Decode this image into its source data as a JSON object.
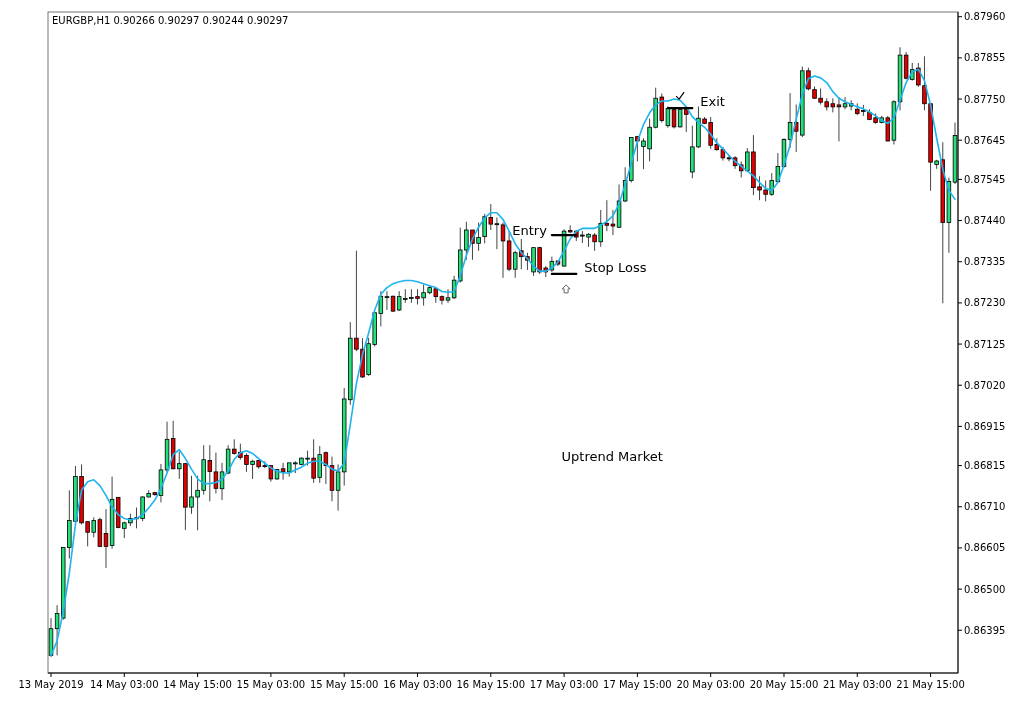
{
  "chart_data": {
    "type": "candlestick",
    "title": "EURGBP,H1 0.90266 0.90297 0.90244 0.90297",
    "categories": [
      "13 May 2019",
      null,
      null,
      null,
      null,
      null,
      null,
      null,
      null,
      null,
      null,
      null,
      "14 May 03:00",
      null,
      null,
      null,
      null,
      null,
      null,
      null,
      null,
      null,
      null,
      null,
      "14 May 15:00",
      null,
      null,
      null,
      null,
      null,
      null,
      null,
      null,
      null,
      null,
      null,
      "15 May 03:00",
      null,
      null,
      null,
      null,
      null,
      null,
      null,
      null,
      null,
      null,
      null,
      "15 May 15:00",
      null,
      null,
      null,
      null,
      null,
      null,
      null,
      null,
      null,
      null,
      null,
      "16 May 03:00",
      null,
      null,
      null,
      null,
      null,
      null,
      null,
      null,
      null,
      null,
      null,
      "16 May 15:00",
      null,
      null,
      null,
      null,
      null,
      null,
      null,
      null,
      null,
      null,
      null,
      "17 May 03:00",
      null,
      null,
      null,
      null,
      null,
      null,
      null,
      null,
      null,
      null,
      null,
      "17 May 15:00",
      null,
      null,
      null,
      null,
      null,
      null,
      null,
      null,
      null,
      null,
      null,
      "20 May 03:00",
      null,
      null,
      null,
      null,
      null,
      null,
      null,
      null,
      null,
      null,
      null,
      "20 May 15:00",
      null,
      null,
      null,
      null,
      null,
      null,
      null,
      null,
      null,
      null,
      null,
      "21 May 03:00",
      null,
      null,
      null,
      null,
      null,
      null,
      null,
      null,
      null,
      null,
      null,
      "21 May 15:00",
      null,
      null,
      null,
      null
    ],
    "ohlc": [
      [
        0.86331,
        0.86426,
        0.86327,
        0.86399
      ],
      [
        0.86399,
        0.86459,
        0.86331,
        0.86438
      ],
      [
        0.86426,
        0.86607,
        0.86422,
        0.86606
      ],
      [
        0.86606,
        0.86752,
        0.86578,
        0.86675
      ],
      [
        0.86673,
        0.86814,
        0.86669,
        0.86787
      ],
      [
        0.86787,
        0.86818,
        0.86665,
        0.86669
      ],
      [
        0.86672,
        0.86673,
        0.86609,
        0.86645
      ],
      [
        0.86645,
        0.86683,
        0.86632,
        0.86675
      ],
      [
        0.86677,
        0.86682,
        0.86607,
        0.86609
      ],
      [
        0.86642,
        0.86704,
        0.86554,
        0.86609
      ],
      [
        0.86611,
        0.86787,
        0.86603,
        0.86729
      ],
      [
        0.86734,
        0.86735,
        0.86655,
        0.86657
      ],
      [
        0.86655,
        0.86672,
        0.8663,
        0.86669
      ],
      [
        0.86669,
        0.86692,
        0.86661,
        0.8668
      ],
      [
        0.8668,
        0.86708,
        0.86655,
        0.86682
      ],
      [
        0.8668,
        0.86737,
        0.86673,
        0.86735
      ],
      [
        0.86735,
        0.86752,
        0.86734,
        0.86744
      ],
      [
        0.86746,
        0.86748,
        0.86738,
        0.86741
      ],
      [
        0.86739,
        0.86819,
        0.86721,
        0.86804
      ],
      [
        0.86804,
        0.86927,
        0.86797,
        0.86882
      ],
      [
        0.86884,
        0.86929,
        0.86805,
        0.86807
      ],
      [
        0.86807,
        0.86851,
        0.86781,
        0.8682
      ],
      [
        0.8682,
        0.86822,
        0.86651,
        0.86709
      ],
      [
        0.86709,
        0.86789,
        0.86692,
        0.86735
      ],
      [
        0.86735,
        0.86789,
        0.8665,
        0.86752
      ],
      [
        0.86752,
        0.86867,
        0.86741,
        0.8683
      ],
      [
        0.86828,
        0.86867,
        0.86724,
        0.868
      ],
      [
        0.86799,
        0.86848,
        0.86744,
        0.86757
      ],
      [
        0.86756,
        0.86822,
        0.86727,
        0.86799
      ],
      [
        0.86796,
        0.86867,
        0.86793,
        0.86857
      ],
      [
        0.86857,
        0.86882,
        0.86843,
        0.86846
      ],
      [
        0.86849,
        0.86871,
        0.8683,
        0.86836
      ],
      [
        0.86841,
        0.86846,
        0.86799,
        0.86818
      ],
      [
        0.86818,
        0.8683,
        0.86781,
        0.86826
      ],
      [
        0.86828,
        0.8683,
        0.86807,
        0.86812
      ],
      [
        0.86815,
        0.86826,
        0.86809,
        0.86813
      ],
      [
        0.86815,
        0.86815,
        0.86774,
        0.86781
      ],
      [
        0.86781,
        0.86807,
        0.86779,
        0.86805
      ],
      [
        0.86807,
        0.86822,
        0.86779,
        0.86799
      ],
      [
        0.86799,
        0.86822,
        0.86787,
        0.86822
      ],
      [
        0.86821,
        0.86826,
        0.86796,
        0.86822
      ],
      [
        0.86818,
        0.86836,
        0.86816,
        0.86834
      ],
      [
        0.86833,
        0.86853,
        0.86815,
        0.86834
      ],
      [
        0.86834,
        0.86882,
        0.86771,
        0.86783
      ],
      [
        0.86785,
        0.86865,
        0.86771,
        0.86843
      ],
      [
        0.86848,
        0.86851,
        0.86768,
        0.86815
      ],
      [
        0.86815,
        0.86838,
        0.86724,
        0.86752
      ],
      [
        0.86752,
        0.86818,
        0.867,
        0.86799
      ],
      [
        0.86799,
        0.87013,
        0.86764,
        0.86985
      ],
      [
        0.86983,
        0.87181,
        0.8697,
        0.8714
      ],
      [
        0.8714,
        0.87363,
        0.87107,
        0.87112
      ],
      [
        0.87112,
        0.8714,
        0.87039,
        0.87041
      ],
      [
        0.87047,
        0.87141,
        0.87044,
        0.87126
      ],
      [
        0.87124,
        0.87205,
        0.87119,
        0.87205
      ],
      [
        0.87203,
        0.8726,
        0.8717,
        0.87247
      ],
      [
        0.87245,
        0.8726,
        0.87212,
        0.87246
      ],
      [
        0.87247,
        0.87249,
        0.87207,
        0.87209
      ],
      [
        0.87212,
        0.8726,
        0.87209,
        0.87246
      ],
      [
        0.8724,
        0.87265,
        0.8723,
        0.87241
      ],
      [
        0.87243,
        0.87265,
        0.8723,
        0.87244
      ],
      [
        0.87246,
        0.87265,
        0.87226,
        0.87241
      ],
      [
        0.87243,
        0.87277,
        0.87223,
        0.87256
      ],
      [
        0.87256,
        0.87273,
        0.87252,
        0.87269
      ],
      [
        0.87266,
        0.87269,
        0.8723,
        0.87246
      ],
      [
        0.87246,
        0.87249,
        0.87226,
        0.87237
      ],
      [
        0.87237,
        0.87265,
        0.8723,
        0.87243
      ],
      [
        0.87243,
        0.87299,
        0.8724,
        0.87288
      ],
      [
        0.87286,
        0.87422,
        0.87282,
        0.87365
      ],
      [
        0.87365,
        0.87437,
        0.8734,
        0.87416
      ],
      [
        0.87416,
        0.87416,
        0.8734,
        0.87382
      ],
      [
        0.87382,
        0.87435,
        0.87363,
        0.87397
      ],
      [
        0.87399,
        0.87457,
        0.87382,
        0.8745
      ],
      [
        0.87448,
        0.87482,
        0.87416,
        0.87431
      ],
      [
        0.87431,
        0.87448,
        0.87367,
        0.87432
      ],
      [
        0.87429,
        0.87435,
        0.87294,
        0.87388
      ],
      [
        0.87388,
        0.87414,
        0.87311,
        0.87316
      ],
      [
        0.87316,
        0.87363,
        0.87294,
        0.87358
      ],
      [
        0.87363,
        0.87393,
        0.87316,
        0.87348
      ],
      [
        0.87348,
        0.87358,
        0.87314,
        0.87339
      ],
      [
        0.87309,
        0.87371,
        0.87299,
        0.87371
      ],
      [
        0.87371,
        0.87373,
        0.87304,
        0.87309
      ],
      [
        0.87319,
        0.87324,
        0.87296,
        0.87309
      ],
      [
        0.87314,
        0.87348,
        0.87309,
        0.87336
      ],
      [
        0.87337,
        0.87337,
        0.87324,
        0.87329
      ],
      [
        0.87324,
        0.87418,
        0.87322,
        0.87413
      ],
      [
        0.87415,
        0.87428,
        0.87408,
        0.87411
      ],
      [
        0.87413,
        0.87415,
        0.87388,
        0.87398
      ],
      [
        0.87403,
        0.87413,
        0.87383,
        0.87401
      ],
      [
        0.87398,
        0.87408,
        0.87373,
        0.87405
      ],
      [
        0.87403,
        0.87408,
        0.87363,
        0.87386
      ],
      [
        0.87386,
        0.87467,
        0.87373,
        0.87433
      ],
      [
        0.87433,
        0.87492,
        0.87413,
        0.87428
      ],
      [
        0.87431,
        0.87467,
        0.87403,
        0.87426
      ],
      [
        0.87423,
        0.87532,
        0.87421,
        0.8749
      ],
      [
        0.8749,
        0.87576,
        0.87487,
        0.87542
      ],
      [
        0.87542,
        0.87652,
        0.87537,
        0.87652
      ],
      [
        0.87654,
        0.87655,
        0.87591,
        0.87643
      ],
      [
        0.87629,
        0.8765,
        0.87571,
        0.87643
      ],
      [
        0.87623,
        0.877,
        0.87591,
        0.87678
      ],
      [
        0.87678,
        0.87779,
        0.87675,
        0.87752
      ],
      [
        0.87755,
        0.87764,
        0.8769,
        0.87695
      ],
      [
        0.87682,
        0.87731,
        0.87677,
        0.87726
      ],
      [
        0.87723,
        0.87726,
        0.87675,
        0.87679
      ],
      [
        0.87679,
        0.87726,
        0.87677,
        0.87723
      ],
      [
        0.87723,
        0.87731,
        0.87666,
        0.87711
      ],
      [
        0.87564,
        0.87682,
        0.87548,
        0.87628
      ],
      [
        0.87628,
        0.87731,
        0.87625,
        0.87701
      ],
      [
        0.87699,
        0.87704,
        0.87686,
        0.87688
      ],
      [
        0.8769,
        0.87704,
        0.87623,
        0.87632
      ],
      [
        0.87634,
        0.8765,
        0.87618,
        0.87621
      ],
      [
        0.87621,
        0.87628,
        0.87593,
        0.876
      ],
      [
        0.876,
        0.87607,
        0.87591,
        0.87598
      ],
      [
        0.876,
        0.87604,
        0.87572,
        0.8758
      ],
      [
        0.87582,
        0.87591,
        0.8755,
        0.87567
      ],
      [
        0.87567,
        0.87625,
        0.87564,
        0.87615
      ],
      [
        0.87615,
        0.87658,
        0.87505,
        0.87524
      ],
      [
        0.87526,
        0.87553,
        0.87492,
        0.87518
      ],
      [
        0.87518,
        0.87542,
        0.87489,
        0.87507
      ],
      [
        0.87507,
        0.87561,
        0.87503,
        0.87542
      ],
      [
        0.87539,
        0.87612,
        0.87537,
        0.87578
      ],
      [
        0.87578,
        0.8765,
        0.87575,
        0.87647
      ],
      [
        0.87647,
        0.87765,
        0.87625,
        0.8769
      ],
      [
        0.8769,
        0.87736,
        0.87615,
        0.87668
      ],
      [
        0.87658,
        0.87833,
        0.87653,
        0.87822
      ],
      [
        0.87822,
        0.8783,
        0.87772,
        0.87776
      ],
      [
        0.87774,
        0.87782,
        0.8775,
        0.87752
      ],
      [
        0.87752,
        0.87777,
        0.87736,
        0.87742
      ],
      [
        0.87743,
        0.87752,
        0.87721,
        0.8773
      ],
      [
        0.87738,
        0.87752,
        0.87716,
        0.8773
      ],
      [
        0.87735,
        0.87755,
        0.87642,
        0.8773
      ],
      [
        0.8773,
        0.87755,
        0.87724,
        0.87738
      ],
      [
        0.87732,
        0.87747,
        0.87721,
        0.87738
      ],
      [
        0.87724,
        0.87739,
        0.87709,
        0.87713
      ],
      [
        0.87721,
        0.87735,
        0.87707,
        0.8772
      ],
      [
        0.87716,
        0.87724,
        0.87696,
        0.87698
      ],
      [
        0.87702,
        0.87713,
        0.87687,
        0.8769
      ],
      [
        0.8769,
        0.87707,
        0.87688,
        0.87702
      ],
      [
        0.87702,
        0.87707,
        0.87642,
        0.87643
      ],
      [
        0.87645,
        0.87747,
        0.87634,
        0.87743
      ],
      [
        0.87743,
        0.87882,
        0.87721,
        0.87862
      ],
      [
        0.87862,
        0.8787,
        0.878,
        0.87803
      ],
      [
        0.878,
        0.87842,
        0.87797,
        0.87825
      ],
      [
        0.87829,
        0.87842,
        0.87781,
        0.87786
      ],
      [
        0.87784,
        0.87859,
        0.87721,
        0.87738
      ],
      [
        0.87738,
        0.87738,
        0.87516,
        0.87589
      ],
      [
        0.87583,
        0.87595,
        0.87572,
        0.87592
      ],
      [
        0.87595,
        0.8764,
        0.87229,
        0.87435
      ],
      [
        0.87435,
        0.8755,
        0.87358,
        0.8754
      ],
      [
        0.87538,
        0.8769,
        0.87533,
        0.87657
      ]
    ],
    "ylim": [
      0.86286,
      0.87972
    ],
    "yticks": [
      {
        "value": 0.8796,
        "label": "0.87960"
      },
      0.87855,
      {
        "value": 0.8775,
        "label": "0.87750"
      },
      0.87645,
      0.87545,
      {
        "value": 0.8744,
        "label": "0.87440"
      },
      0.87335,
      {
        "value": 0.8723,
        "label": "0.87230"
      },
      0.87125,
      {
        "value": 0.8702,
        "label": "0.87020"
      },
      0.86915,
      0.86815,
      {
        "value": 0.8671,
        "label": "0.86710"
      },
      0.86605,
      {
        "value": 0.865,
        "label": "0.86500"
      },
      0.86395
    ],
    "series": [
      {
        "type": "line",
        "color": "#1eb4f0",
        "values": [
          0.86331,
          0.86368,
          0.86442,
          0.86541,
          0.86665,
          0.86752,
          0.86774,
          0.86779,
          0.86764,
          0.86739,
          0.8671,
          0.8669,
          0.8668,
          0.86677,
          0.8668,
          0.8669,
          0.86707,
          0.86727,
          0.86757,
          0.86796,
          0.86843,
          0.86856,
          0.86833,
          0.86806,
          0.86781,
          0.86769,
          0.86769,
          0.86772,
          0.86781,
          0.86801,
          0.86831,
          0.86848,
          0.86853,
          0.86846,
          0.86833,
          0.86821,
          0.86809,
          0.86801,
          0.86796,
          0.86796,
          0.86804,
          0.86811,
          0.86821,
          0.86826,
          0.86826,
          0.86818,
          0.86806,
          0.86801,
          0.86821,
          0.8692,
          0.87024,
          0.87098,
          0.87153,
          0.87212,
          0.87252,
          0.87269,
          0.87279,
          0.87284,
          0.87287,
          0.87287,
          0.87284,
          0.87279,
          0.87274,
          0.87269,
          0.87259,
          0.87257,
          0.87259,
          0.87299,
          0.87351,
          0.87393,
          0.87423,
          0.87447,
          0.8746,
          0.8746,
          0.87443,
          0.87413,
          0.87381,
          0.87358,
          0.87343,
          0.87324,
          0.87311,
          0.87311,
          0.87319,
          0.87334,
          0.87363,
          0.87393,
          0.87413,
          0.8742,
          0.8742,
          0.8742,
          0.87428,
          0.87438,
          0.87452,
          0.87482,
          0.87532,
          0.87586,
          0.87641,
          0.87685,
          0.87715,
          0.87735,
          0.87745,
          0.87745,
          0.8775,
          0.87747,
          0.8773,
          0.87705,
          0.8769,
          0.87678,
          0.8766,
          0.87638,
          0.87623,
          0.87606,
          0.87591,
          0.87579,
          0.87566,
          0.87554,
          0.87537,
          0.87522,
          0.87517,
          0.87537,
          0.87581,
          0.87633,
          0.87698,
          0.87762,
          0.87802,
          0.87809,
          0.87804,
          0.87792,
          0.87769,
          0.87752,
          0.87743,
          0.87737,
          0.8773,
          0.87725,
          0.87717,
          0.87707,
          0.87695,
          0.87688,
          0.87702,
          0.87747,
          0.87792,
          0.87819,
          0.87826,
          0.87797,
          0.87735,
          0.8765,
          0.87571,
          0.87517,
          0.87494
        ]
      },
      {
        "name": "Entry",
        "type": "line",
        "color": "#000000",
        "values": [
          null,
          null,
          null,
          null,
          null,
          null,
          null,
          null,
          null,
          null,
          null,
          null,
          null,
          null,
          null,
          null,
          null,
          null,
          null,
          null,
          null,
          null,
          null,
          null,
          null,
          null,
          null,
          null,
          null,
          null,
          null,
          null,
          null,
          null,
          null,
          null,
          null,
          null,
          null,
          null,
          null,
          null,
          null,
          null,
          null,
          null,
          null,
          null,
          null,
          null,
          null,
          null,
          null,
          null,
          null,
          null,
          null,
          null,
          null,
          null,
          null,
          null,
          null,
          null,
          null,
          null,
          null,
          null,
          null,
          null,
          null,
          null,
          null,
          null,
          null,
          null,
          null,
          null,
          null,
          null,
          null,
          null,
          0.87403,
          0.87403,
          0.87403,
          0.87403,
          0.87403,
          null,
          null,
          null,
          null,
          null,
          null,
          null,
          null,
          null,
          null,
          null,
          null,
          null,
          null,
          null,
          null,
          null,
          null,
          null,
          null,
          null,
          null,
          null,
          null,
          null,
          null,
          null,
          null,
          null,
          null,
          null,
          null,
          null,
          null,
          null,
          null,
          null,
          null,
          null,
          null,
          null,
          null,
          null,
          null,
          null,
          null,
          null,
          null,
          null,
          null,
          null,
          null,
          null,
          null,
          null,
          null,
          null,
          null,
          null,
          null,
          null,
          null
        ]
      },
      {
        "name": "Stop Loss",
        "type": "line",
        "color": "#000000",
        "values": [
          null,
          null,
          null,
          null,
          null,
          null,
          null,
          null,
          null,
          null,
          null,
          null,
          null,
          null,
          null,
          null,
          null,
          null,
          null,
          null,
          null,
          null,
          null,
          null,
          null,
          null,
          null,
          null,
          null,
          null,
          null,
          null,
          null,
          null,
          null,
          null,
          null,
          null,
          null,
          null,
          null,
          null,
          null,
          null,
          null,
          null,
          null,
          null,
          null,
          null,
          null,
          null,
          null,
          null,
          null,
          null,
          null,
          null,
          null,
          null,
          null,
          null,
          null,
          null,
          null,
          null,
          null,
          null,
          null,
          null,
          null,
          null,
          null,
          null,
          null,
          null,
          null,
          null,
          null,
          null,
          null,
          null,
          0.87304,
          0.87304,
          0.87304,
          0.87304,
          0.87304,
          null,
          null,
          null,
          null,
          null,
          null,
          null,
          null,
          null,
          null,
          null,
          null,
          null,
          null,
          null,
          null,
          null,
          null,
          null,
          null,
          null,
          null,
          null,
          null,
          null,
          null,
          null,
          null,
          null,
          null,
          null,
          null,
          null,
          null,
          null,
          null,
          null,
          null,
          null,
          null,
          null,
          null,
          null,
          null,
          null,
          null,
          null,
          null,
          null,
          null,
          null,
          null,
          null,
          null,
          null,
          null,
          null,
          null,
          null,
          null,
          null,
          null
        ]
      },
      {
        "name": "Exit",
        "type": "line",
        "color": "#000000",
        "values": [
          null,
          null,
          null,
          null,
          null,
          null,
          null,
          null,
          null,
          null,
          null,
          null,
          null,
          null,
          null,
          null,
          null,
          null,
          null,
          null,
          null,
          null,
          null,
          null,
          null,
          null,
          null,
          null,
          null,
          null,
          null,
          null,
          null,
          null,
          null,
          null,
          null,
          null,
          null,
          null,
          null,
          null,
          null,
          null,
          null,
          null,
          null,
          null,
          null,
          null,
          null,
          null,
          null,
          null,
          null,
          null,
          null,
          null,
          null,
          null,
          null,
          null,
          null,
          null,
          null,
          null,
          null,
          null,
          null,
          null,
          null,
          null,
          null,
          null,
          null,
          null,
          null,
          null,
          null,
          null,
          null,
          null,
          null,
          null,
          null,
          null,
          null,
          null,
          null,
          null,
          null,
          null,
          null,
          null,
          null,
          null,
          null,
          null,
          null,
          null,
          null,
          0.87727,
          0.87727,
          0.87727,
          0.87727,
          0.87727,
          null,
          null,
          null,
          null,
          null,
          null,
          null,
          null,
          null,
          null,
          null,
          null,
          null,
          null,
          null,
          null,
          null,
          null,
          null,
          null,
          null,
          null,
          null,
          null,
          null,
          null,
          null,
          null,
          null,
          null,
          null,
          null,
          null,
          null,
          null,
          null,
          null,
          null,
          null,
          null,
          null,
          null,
          null
        ]
      }
    ],
    "annotations": [
      "Uptrend Market"
    ]
  }
}
